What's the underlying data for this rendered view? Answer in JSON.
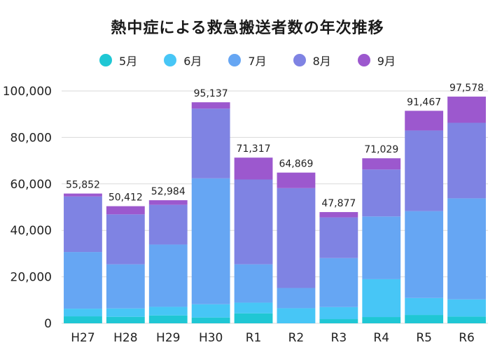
{
  "chart_data": {
    "type": "bar",
    "stacked": true,
    "title": "熱中症による救急搬送者数の年次推移",
    "categories": [
      "H27",
      "H28",
      "H29",
      "H30",
      "R1",
      "R2",
      "R3",
      "R4",
      "R5",
      "R6"
    ],
    "series": [
      {
        "name": "5月",
        "color": "#1fc7d4",
        "values": [
          3000,
          2800,
          3400,
          2500,
          4300,
          0,
          1800,
          2700,
          3600,
          2900
        ]
      },
      {
        "name": "6月",
        "color": "#47c6f6",
        "values": [
          3300,
          3600,
          3700,
          5700,
          4600,
          6500,
          5200,
          16300,
          7300,
          7400
        ]
      },
      {
        "name": "7月",
        "color": "#66a6f3",
        "values": [
          24400,
          19000,
          26800,
          54200,
          16500,
          8700,
          21100,
          27000,
          37400,
          43500
        ]
      },
      {
        "name": "8月",
        "color": "#7f83e3",
        "values": [
          23900,
          21500,
          17100,
          30000,
          36500,
          43000,
          17500,
          20200,
          34700,
          32500
        ]
      },
      {
        "name": "9月",
        "color": "#9c58ce",
        "values": [
          1252,
          3512,
          1984,
          2737,
          9417,
          6669,
          2277,
          4829,
          8467,
          11278
        ]
      }
    ],
    "totals": [
      "55,852",
      "50,412",
      "52,984",
      "95,137",
      "71,317",
      "64,869",
      "47,877",
      "71,029",
      "91,467",
      "97,578"
    ],
    "total_values": [
      55852,
      50412,
      52984,
      95137,
      71317,
      64869,
      47877,
      71029,
      91467,
      97578
    ],
    "ylim": [
      0,
      100000
    ],
    "yticks": [
      {
        "value": 0,
        "label": "0"
      },
      {
        "value": 20000,
        "label": "20,000"
      },
      {
        "value": 40000,
        "label": "40,000"
      },
      {
        "value": 60000,
        "label": "60,000"
      },
      {
        "value": 80000,
        "label": "80,000"
      },
      {
        "value": 100000,
        "label": "100,000"
      }
    ],
    "grid": true,
    "legend_position": "top-center"
  }
}
